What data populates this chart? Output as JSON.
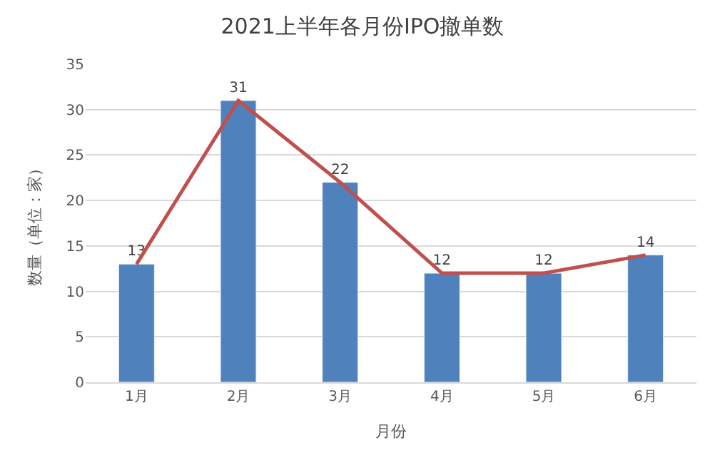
{
  "chart_data": {
    "type": "bar",
    "title": "2021上半年各月份IPO撤单数",
    "xlabel": "月份",
    "ylabel": "数量（单位：家）",
    "categories": [
      "1月",
      "2月",
      "3月",
      "4月",
      "5月",
      "6月"
    ],
    "series": [
      {
        "color": "#4f81bd",
        "values": [
          13,
          31,
          22,
          12,
          12,
          14
        ],
        "value_labels": [
          "13",
          "31",
          "22",
          "12",
          "12",
          "14"
        ]
      },
      {
        "type": "line",
        "color": "#c0504d",
        "values": [
          13,
          31,
          22,
          12,
          12,
          14
        ]
      }
    ],
    "ylim": [
      0,
      35
    ],
    "yticks": [
      0,
      5,
      10,
      15,
      20,
      25,
      30,
      35
    ],
    "grid": "y",
    "legend": false,
    "marker": "none",
    "line_style": "solid"
  }
}
